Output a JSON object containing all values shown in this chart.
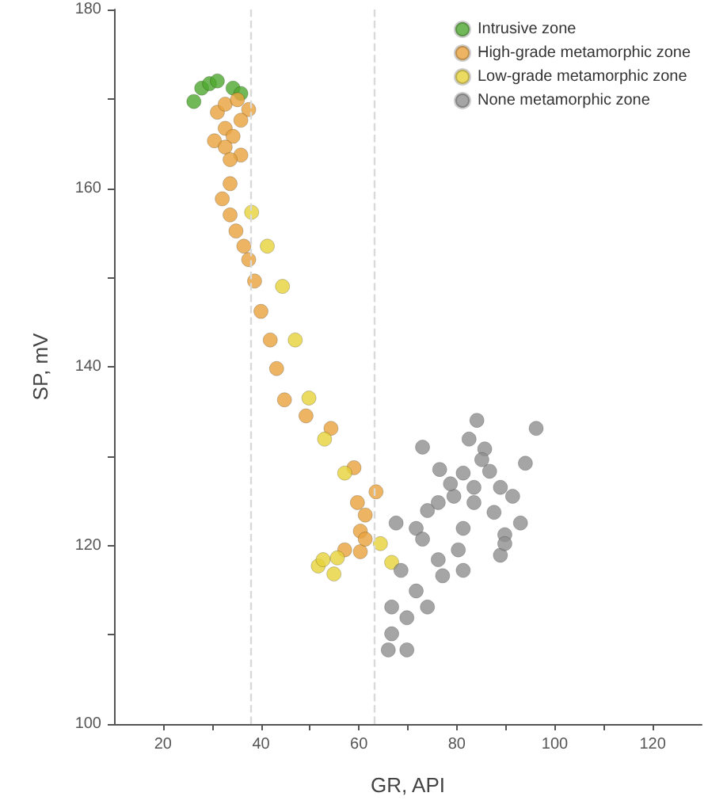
{
  "chart_data": {
    "type": "scatter",
    "xlabel": "GR, API",
    "ylabel": "SP, mV",
    "xlim": [
      10,
      130
    ],
    "ylim": [
      100,
      180
    ],
    "xticks": [
      20,
      {
        "value": 30,
        "label": null
      },
      40,
      {
        "value": 50,
        "label": null
      },
      60,
      {
        "value": 70,
        "label": null
      },
      80,
      {
        "value": 90,
        "label": null
      },
      100,
      {
        "value": 110,
        "label": null
      },
      120
    ],
    "yticks": [
      100,
      {
        "value": 110,
        "label": null
      },
      120,
      {
        "value": 130,
        "label": null
      },
      140,
      {
        "value": 150,
        "label": null
      },
      160,
      {
        "value": 170,
        "label": null
      },
      180
    ],
    "grid": false,
    "legend": "top right",
    "marker": "circle",
    "ref_lines": [
      {
        "axis": "x",
        "value": 38,
        "label": null,
        "color": "#d9d9d9",
        "line_style": "dashed"
      },
      {
        "axis": "x",
        "value": 63,
        "label": null,
        "color": "#d9d9d9",
        "line_style": "dashed"
      }
    ],
    "series": [
      {
        "name": "Intrusive zone",
        "color": "#4ea72e",
        "x": [
          26.3,
          27.9,
          29.5,
          31.1,
          34.3,
          35.9
        ],
        "values": [
          169.7,
          171.2,
          171.7,
          172.0,
          171.2,
          170.6
        ]
      },
      {
        "name": "High-grade metamorphic zone",
        "color": "#e8a33c",
        "x": [
          31.1,
          32.7,
          35.2,
          37.5,
          35.9,
          32.7,
          34.3,
          30.5,
          32.7,
          35.9,
          33.7,
          33.7,
          32.1,
          33.7,
          34.9,
          36.5,
          37.5,
          38.7,
          40.0,
          41.9,
          43.2,
          44.8,
          49.2,
          54.3,
          59.0,
          63.5,
          59.7,
          61.3,
          60.3,
          57.1,
          60.3,
          61.3
        ],
        "values": [
          168.5,
          169.4,
          169.9,
          168.8,
          167.6,
          166.7,
          165.8,
          165.3,
          164.6,
          163.7,
          163.2,
          160.5,
          158.8,
          157.0,
          155.2,
          153.5,
          152.0,
          149.6,
          146.2,
          143.0,
          139.8,
          136.3,
          134.5,
          133.1,
          128.7,
          126.0,
          124.8,
          123.4,
          121.6,
          119.5,
          119.3,
          120.7
        ]
      },
      {
        "name": "Low-grade metamorphic zone",
        "color": "#e6d23a",
        "x": [
          44.4,
          47.0,
          49.8,
          53.0,
          57.1,
          41.3,
          38.1,
          51.7,
          54.9,
          52.7,
          64.4,
          66.7,
          55.6
        ],
        "values": [
          149.0,
          143.0,
          136.5,
          131.9,
          128.1,
          153.5,
          157.3,
          117.7,
          116.8,
          118.4,
          120.2,
          118.1,
          118.6
        ]
      },
      {
        "name": "None metamorphic zone",
        "color": "#8f8f8f",
        "x": [
          84.1,
          96.2,
          73.0,
          82.5,
          85.7,
          94.0,
          76.5,
          81.3,
          86.7,
          83.5,
          88.9,
          79.4,
          76.2,
          91.4,
          83.5,
          74.0,
          87.6,
          67.6,
          71.7,
          81.3,
          93.0,
          89.8,
          73.0,
          80.3,
          88.9,
          68.6,
          77.1,
          81.3,
          71.7,
          66.7,
          74.0,
          69.8,
          66.7,
          66.0,
          69.8,
          76.2,
          89.8,
          78.7,
          85.1
        ],
        "values": [
          134.0,
          133.1,
          131.0,
          131.9,
          130.8,
          129.2,
          128.5,
          128.1,
          128.3,
          126.5,
          126.5,
          125.5,
          124.8,
          125.5,
          124.8,
          123.9,
          123.7,
          122.5,
          121.9,
          121.9,
          122.5,
          121.2,
          120.7,
          119.5,
          118.9,
          117.2,
          116.6,
          117.2,
          114.9,
          113.1,
          113.1,
          111.9,
          110.1,
          108.3,
          108.3,
          118.4,
          120.2,
          126.9,
          129.6
        ]
      }
    ]
  }
}
